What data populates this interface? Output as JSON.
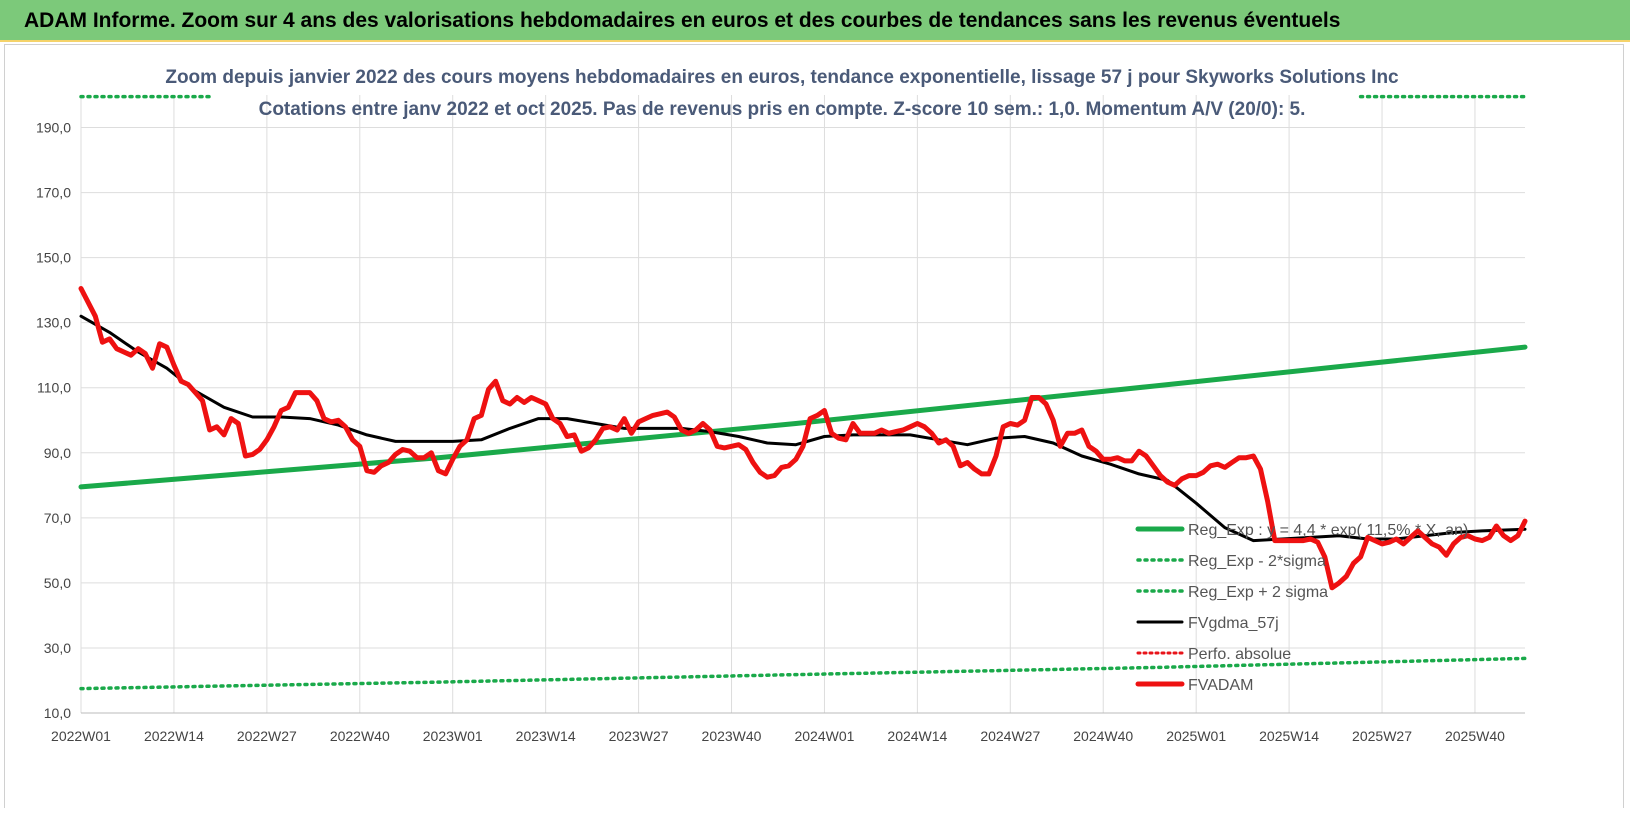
{
  "header": {
    "title": "ADAM Informe. Zoom sur 4 ans des valorisations hebdomadaires en euros et des courbes de tendances sans les revenus éventuels"
  },
  "colors": {
    "banner": "#7cc97a",
    "reg_exp": "#1aa94a",
    "sigma": "#1aa94a",
    "fvgdma": "#000000",
    "perfo": "#e8141a",
    "fvadam": "#ee1111",
    "grid": "#dddddd"
  },
  "chart_data": {
    "type": "line",
    "title": "Zoom depuis janvier 2022 des cours moyens hebdomadaires en euros, tendance exponentielle, lissage 57 j pour Skyworks Solutions Inc",
    "subtitle": "Cotations entre janv 2022 et oct 2025. Pas de revenus pris en compte. Z-score 10 sem.: 1,0. Momentum A/V (20/0): 5.",
    "xlabel": "",
    "ylabel": "",
    "ylim": [
      10,
      200
    ],
    "yticks": [
      "10,0",
      "30,0",
      "50,0",
      "70,0",
      "90,0",
      "110,0",
      "130,0",
      "150,0",
      "170,0",
      "190,0"
    ],
    "xticks": [
      "2022W01",
      "2022W14",
      "2022W27",
      "2022W40",
      "2023W01",
      "2023W14",
      "2023W27",
      "2023W40",
      "2024W01",
      "2024W14",
      "2024W27",
      "2024W40",
      "2025W01",
      "2025W14",
      "2025W27",
      "2025W40"
    ],
    "x_range_weeks": [
      0,
      202
    ],
    "legend_position": "bottom-right",
    "series": [
      {
        "name": "Reg_Exp : y = 4,4 * exp( 11,5% * X, an)",
        "style": "solid-thick",
        "x": [
          0,
          50,
          100,
          150,
          202
        ],
        "values": [
          79.5,
          88.5,
          99.0,
          110.5,
          122.5
        ]
      },
      {
        "name": "Reg_Exp - 2*sigma",
        "style": "dotted",
        "x": [
          0,
          50,
          100,
          150,
          202
        ],
        "values": [
          17.5,
          19.5,
          21.8,
          24.0,
          26.8
        ]
      },
      {
        "name": "Reg_Exp + 2 sigma",
        "style": "dotted",
        "x": [
          0,
          18,
          179,
          202
        ],
        "values": [
          199.5,
          199.5,
          199.5,
          199.5
        ]
      },
      {
        "name": "FVgdma_57j",
        "style": "solid",
        "x": [
          0,
          4,
          8,
          12,
          16,
          20,
          24,
          28,
          32,
          36,
          40,
          44,
          48,
          52,
          56,
          60,
          64,
          68,
          72,
          76,
          80,
          84,
          88,
          92,
          96,
          100,
          104,
          108,
          112,
          116,
          120,
          124,
          128,
          132,
          136,
          140,
          144,
          148,
          152,
          156,
          160,
          164,
          168,
          172,
          176,
          180,
          184,
          188,
          192,
          196,
          202
        ],
        "values": [
          132,
          127,
          121,
          116,
          109,
          104,
          101,
          101,
          100.5,
          98.5,
          95.5,
          93.5,
          93.5,
          93.5,
          94,
          97.5,
          100.5,
          100.5,
          99,
          97.5,
          97.5,
          97.5,
          96.5,
          95,
          93,
          92.5,
          95,
          95.5,
          95.5,
          95.5,
          94,
          92.5,
          94.5,
          95,
          93,
          89,
          86.5,
          83.5,
          81.5,
          74.5,
          67,
          63,
          63.5,
          64,
          64.5,
          63.5,
          63.5,
          64.5,
          65.5,
          66,
          66.5
        ]
      },
      {
        "name": "Perfo. absolue",
        "style": "dotted",
        "x": [],
        "values": []
      },
      {
        "name": "FVADAM",
        "style": "solid-thick",
        "x": [
          0,
          2,
          3,
          4,
          5,
          6,
          7,
          8,
          9,
          10,
          11,
          12,
          13,
          14,
          15,
          16,
          17,
          18,
          19,
          20,
          21,
          22,
          23,
          24,
          25,
          26,
          27,
          28,
          29,
          30,
          31,
          32,
          33,
          34,
          35,
          36,
          37,
          38,
          39,
          40,
          41,
          42,
          43,
          44,
          45,
          46,
          47,
          48,
          49,
          50,
          51,
          52,
          53,
          54,
          55,
          56,
          57,
          58,
          59,
          60,
          61,
          62,
          63,
          64,
          65,
          66,
          67,
          68,
          69,
          70,
          71,
          72,
          73,
          74,
          75,
          76,
          77,
          78,
          79,
          80,
          81,
          82,
          83,
          84,
          85,
          86,
          87,
          88,
          89,
          90,
          91,
          92,
          93,
          94,
          95,
          96,
          97,
          98,
          99,
          100,
          101,
          102,
          103,
          104,
          105,
          106,
          107,
          108,
          109,
          110,
          111,
          112,
          113,
          114,
          115,
          116,
          117,
          118,
          119,
          120,
          121,
          122,
          123,
          124,
          125,
          126,
          127,
          128,
          129,
          130,
          131,
          132,
          133,
          134,
          135,
          136,
          137,
          138,
          139,
          140,
          141,
          142,
          143,
          144,
          145,
          146,
          147,
          148,
          149,
          150,
          151,
          152,
          153,
          154,
          155,
          156,
          157,
          158,
          159,
          160,
          161,
          162,
          163,
          164,
          165,
          166,
          167,
          168,
          169,
          170,
          171,
          172,
          173,
          174,
          175,
          176,
          177,
          178,
          179,
          180,
          181,
          182,
          183,
          184,
          185,
          186,
          187,
          188,
          189,
          190,
          191,
          192,
          193,
          194,
          195,
          196,
          197,
          198,
          199,
          200,
          201,
          202
        ],
        "values": [
          140.5,
          132,
          124,
          125,
          122,
          121,
          120,
          122,
          120.5,
          116,
          123.5,
          122.5,
          117,
          112,
          111,
          108.5,
          106,
          97,
          98,
          95.5,
          100.5,
          99,
          89,
          89.5,
          91,
          94,
          98,
          103,
          104,
          108.5,
          108.5,
          108.5,
          106,
          100.5,
          99.5,
          100,
          98,
          94,
          92,
          84.5,
          84,
          86,
          87,
          89.5,
          91,
          90.5,
          88.5,
          88.5,
          90,
          84.5,
          83.5,
          88,
          92,
          94,
          100.5,
          101.5,
          109.5,
          112,
          106,
          105,
          107,
          105.5,
          107,
          106,
          105,
          100.5,
          99,
          95,
          95.5,
          90.5,
          91.5,
          94,
          97.5,
          98,
          97,
          100.5,
          96,
          99.5,
          100.5,
          101.5,
          102,
          102.5,
          101,
          97,
          96,
          97,
          99,
          97,
          92,
          91.5,
          92,
          92.5,
          91,
          87,
          84,
          82.5,
          83,
          85.5,
          86,
          88,
          92,
          100.5,
          101.5,
          103,
          96,
          94.5,
          94,
          99,
          96,
          96,
          96,
          97,
          96,
          96.5,
          97,
          98,
          99,
          98,
          96,
          93,
          94,
          92,
          86,
          87,
          85,
          83.5,
          83.5,
          89,
          98,
          99,
          98.5,
          100,
          107,
          107,
          105,
          100,
          92,
          96,
          96,
          97,
          92,
          90.5,
          88,
          88,
          88.5,
          87.5,
          87.5,
          90.5,
          89,
          86,
          83,
          81,
          80,
          82,
          83,
          83,
          84,
          86,
          86.5,
          85.5,
          87,
          88.5,
          88.5,
          89,
          85,
          75,
          63,
          63,
          63,
          63,
          63,
          63.5,
          62.5,
          58,
          48.5,
          50,
          52,
          56,
          58,
          64,
          63,
          62,
          62.5,
          63.5,
          62,
          64,
          66,
          64,
          62,
          61,
          58.5,
          62,
          64,
          64.5,
          63.5,
          63,
          64,
          67.5,
          64.5,
          63,
          64.5,
          69
        ]
      }
    ]
  }
}
